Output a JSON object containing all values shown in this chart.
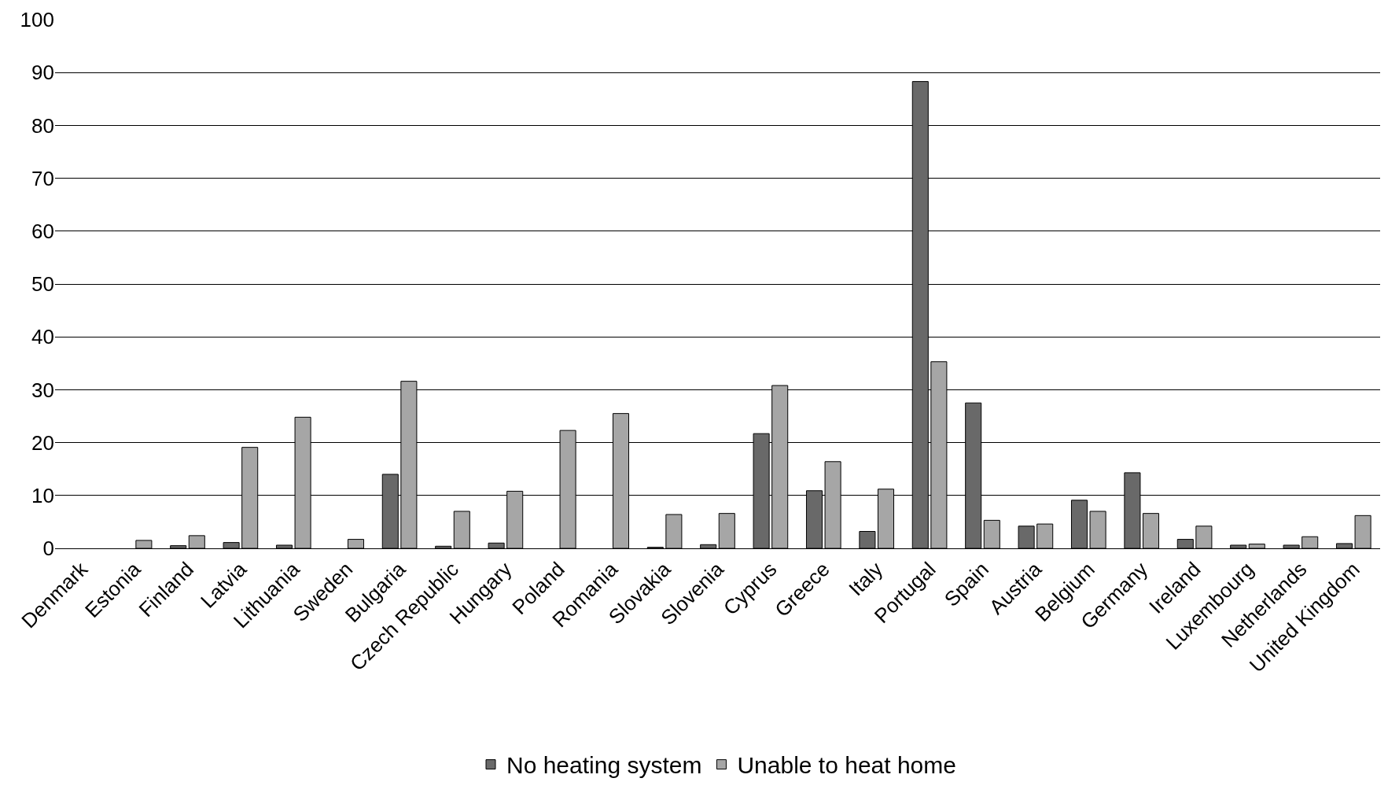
{
  "chart_data": {
    "type": "bar",
    "categories": [
      "Denmark",
      "Estonia",
      "Finland",
      "Latvia",
      "Lithuania",
      "Sweden",
      "Bulgaria",
      "Czech Republic",
      "Hungary",
      "Poland",
      "Romania",
      "Slovakia",
      "Slovenia",
      "Cyprus",
      "Greece",
      "Italy",
      "Portugal",
      "Spain",
      "Austria",
      "Belgium",
      "Germany",
      "Ireland",
      "Luxembourg",
      "Netherlands",
      "United Kingdom"
    ],
    "series": [
      {
        "name": "No heating system",
        "color": "#696969",
        "values": [
          null,
          null,
          0.5,
          1.1,
          0.6,
          null,
          14.0,
          0.4,
          1.0,
          null,
          null,
          0.2,
          0.7,
          21.7,
          10.9,
          3.2,
          88.3,
          27.5,
          4.2,
          9.1,
          14.3,
          1.7,
          0.6,
          0.6,
          0.9
        ]
      },
      {
        "name": "Unable to heat home",
        "color": "#a6a6a6",
        "values": [
          null,
          1.5,
          2.4,
          19.1,
          24.8,
          1.7,
          31.6,
          7.0,
          10.8,
          22.3,
          25.5,
          6.4,
          6.6,
          30.8,
          16.4,
          11.2,
          35.3,
          5.3,
          4.6,
          7.0,
          6.6,
          4.2,
          0.8,
          2.2,
          6.2
        ]
      }
    ],
    "ylim": [
      0,
      100
    ],
    "yticks": [
      0,
      10,
      20,
      30,
      40,
      50,
      60,
      70,
      80,
      90,
      100
    ],
    "grid": "y",
    "legend": "bottom"
  }
}
